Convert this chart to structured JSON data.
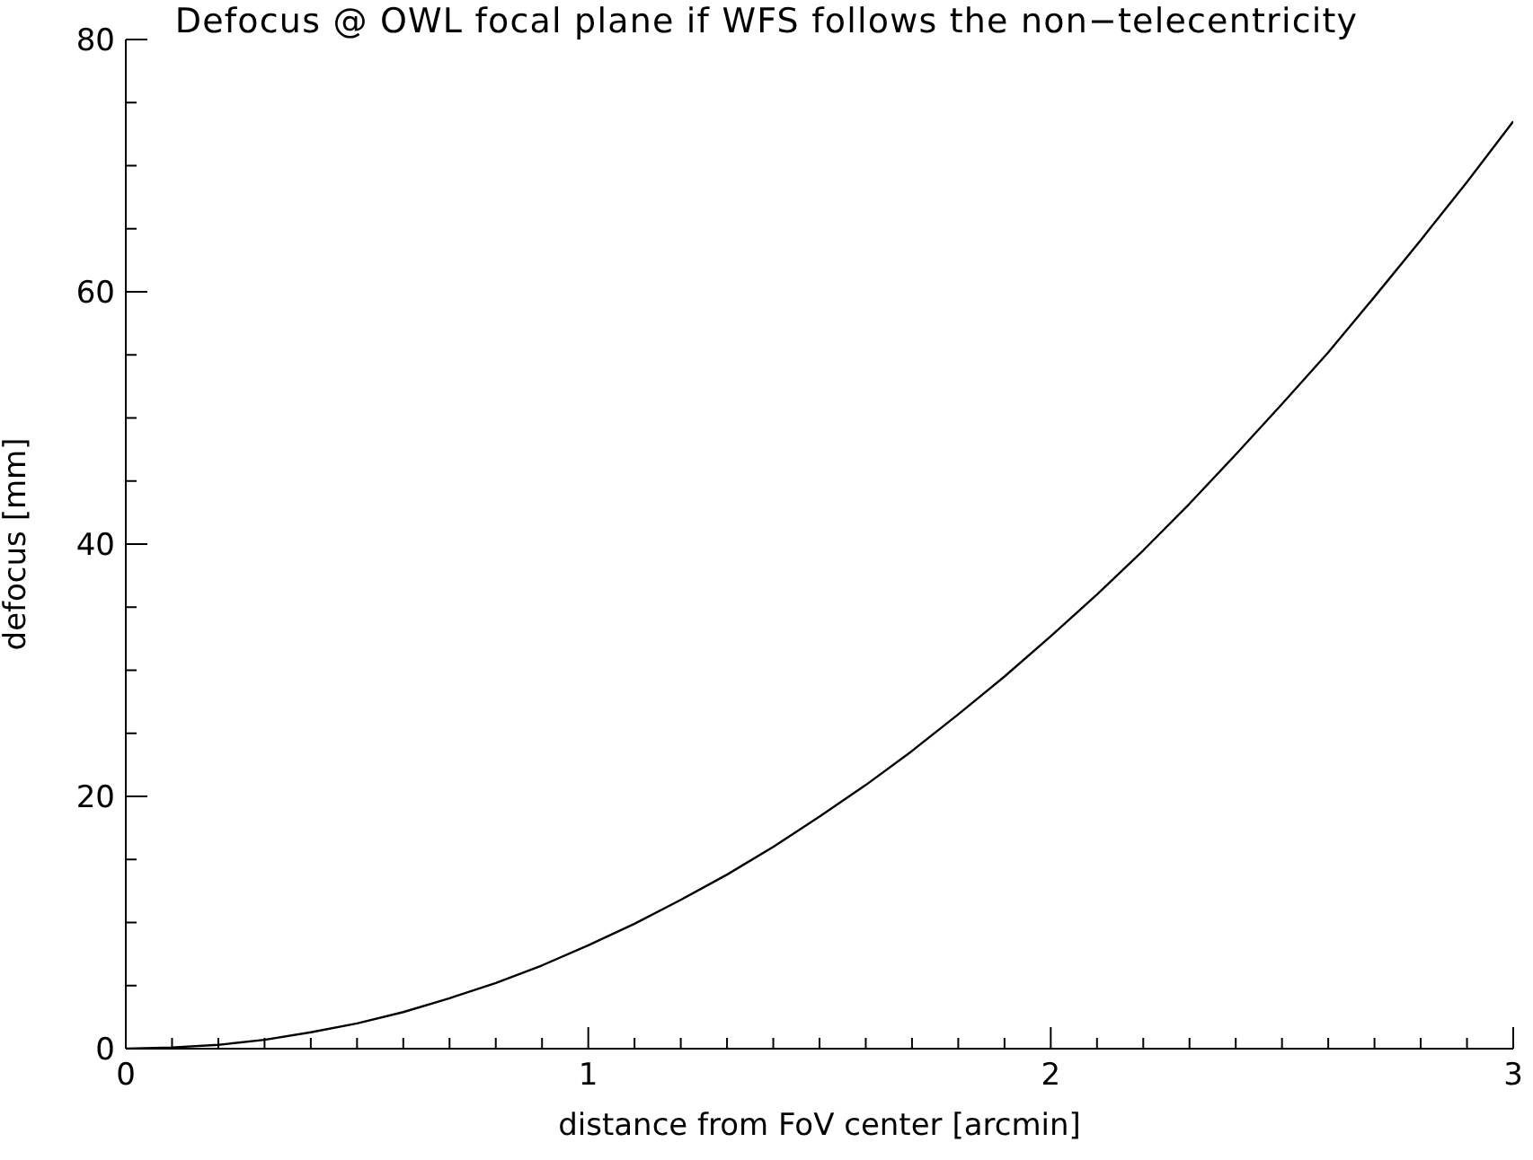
{
  "chart_data": {
    "type": "line",
    "title": "Defocus @ OWL focal plane if WFS follows the non−telecentricity",
    "xlabel": "distance from FoV center [arcmin]",
    "ylabel": "defocus [mm]",
    "x": [
      0,
      0.1,
      0.2,
      0.3,
      0.4,
      0.5,
      0.6,
      0.7,
      0.8,
      0.9,
      1,
      1.1,
      1.2,
      1.3,
      1.4,
      1.5,
      1.6,
      1.7,
      1.8,
      1.9,
      2,
      2.1,
      2.2,
      2.3,
      2.4,
      2.5,
      2.6,
      2.7,
      2.8,
      2.9,
      3
    ],
    "series": [
      {
        "color": "#000000",
        "values": [
          0,
          0.1,
          0.3,
          0.7,
          1.3,
          2.0,
          2.9,
          4.0,
          5.2,
          6.6,
          8.2,
          9.9,
          11.8,
          13.8,
          16.0,
          18.4,
          20.9,
          23.6,
          26.5,
          29.5,
          32.7,
          36.0,
          39.5,
          43.2,
          47.1,
          51.1,
          55.2,
          59.6,
          64.1,
          68.7,
          73.5
        ]
      }
    ],
    "xlim": [
      0,
      3
    ],
    "ylim": [
      0,
      80
    ],
    "xticks": [
      0,
      {
        "value": 0.1,
        "label": null
      },
      {
        "value": 0.2,
        "label": null
      },
      {
        "value": 0.3,
        "label": null
      },
      {
        "value": 0.4,
        "label": null
      },
      {
        "value": 0.5,
        "label": null
      },
      {
        "value": 0.6,
        "label": null
      },
      {
        "value": 0.7,
        "label": null
      },
      {
        "value": 0.8,
        "label": null
      },
      {
        "value": 0.9,
        "label": null
      },
      1,
      {
        "value": 1.1,
        "label": null
      },
      {
        "value": 1.2,
        "label": null
      },
      {
        "value": 1.3,
        "label": null
      },
      {
        "value": 1.4,
        "label": null
      },
      {
        "value": 1.5,
        "label": null
      },
      {
        "value": 1.6,
        "label": null
      },
      {
        "value": 1.7,
        "label": null
      },
      {
        "value": 1.8,
        "label": null
      },
      {
        "value": 1.9,
        "label": null
      },
      2,
      {
        "value": 2.1,
        "label": null
      },
      {
        "value": 2.2,
        "label": null
      },
      {
        "value": 2.3,
        "label": null
      },
      {
        "value": 2.4,
        "label": null
      },
      {
        "value": 2.5,
        "label": null
      },
      {
        "value": 2.6,
        "label": null
      },
      {
        "value": 2.7,
        "label": null
      },
      {
        "value": 2.8,
        "label": null
      },
      {
        "value": 2.9,
        "label": null
      },
      3
    ],
    "yticks": [
      0,
      {
        "value": 5,
        "label": null
      },
      {
        "value": 10,
        "label": null
      },
      {
        "value": 15,
        "label": null
      },
      20,
      {
        "value": 25,
        "label": null
      },
      {
        "value": 30,
        "label": null
      },
      {
        "value": 35,
        "label": null
      },
      40,
      {
        "value": 45,
        "label": null
      },
      {
        "value": 50,
        "label": null
      },
      {
        "value": 55,
        "label": null
      },
      60,
      {
        "value": 65,
        "label": null
      },
      {
        "value": 70,
        "label": null
      },
      {
        "value": 75,
        "label": null
      },
      80
    ]
  }
}
